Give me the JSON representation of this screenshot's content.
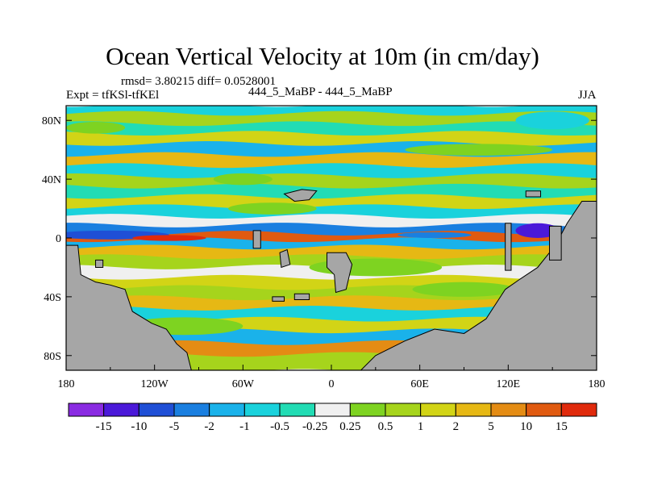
{
  "chart_data": {
    "type": "heatmap",
    "title": "Ocean Vertical Velocity at 10m (in cm/day)",
    "stats_label": "rmsd= 3.80215 diff= 0.0528001",
    "expt_label": "Expt = tfKSl-tfKEl",
    "center_label": "444_5_MaBP - 444_5_MaBP",
    "season_label": "JJA",
    "xlim": [
      -180,
      180
    ],
    "ylim": [
      -90,
      90
    ],
    "x_ticks": [
      {
        "value": -180,
        "label": "180"
      },
      {
        "value": -120,
        "label": "120W"
      },
      {
        "value": -60,
        "label": "60W"
      },
      {
        "value": 0,
        "label": "0"
      },
      {
        "value": 60,
        "label": "60E"
      },
      {
        "value": 120,
        "label": "120E"
      },
      {
        "value": 180,
        "label": "180"
      }
    ],
    "y_ticks": [
      {
        "value": 80,
        "label": "80N"
      },
      {
        "value": 40,
        "label": "40N"
      },
      {
        "value": 0,
        "label": "0"
      },
      {
        "value": -40,
        "label": "40S"
      },
      {
        "value": -80,
        "label": "80S"
      }
    ],
    "colorbar": {
      "labels": [
        "-15",
        "-10",
        "-5",
        "-2",
        "-1",
        "-0.5",
        "-0.25",
        "0.25",
        "0.5",
        "1",
        "2",
        "5",
        "10",
        "15"
      ],
      "colors": [
        "#8a2be2",
        "#4b19d9",
        "#1f4fd6",
        "#1a7fe0",
        "#1ab2ea",
        "#1ad2dc",
        "#22dcb4",
        "#f0f0f0",
        "#7ed321",
        "#a6d41c",
        "#d2d416",
        "#e6b814",
        "#e48c14",
        "#e05a10",
        "#e02a0c"
      ]
    },
    "bands": [
      {
        "lat": 88,
        "value": -1
      },
      {
        "lat": 80,
        "value": 0.5
      },
      {
        "lat": 74,
        "value": -0.5
      },
      {
        "lat": 67,
        "value": 1
      },
      {
        "lat": 60,
        "value": -2
      },
      {
        "lat": 52,
        "value": 2
      },
      {
        "lat": 45,
        "value": -1
      },
      {
        "lat": 38,
        "value": 0.5
      },
      {
        "lat": 31,
        "value": -0.5
      },
      {
        "lat": 24,
        "value": 1
      },
      {
        "lat": 17,
        "value": -1
      },
      {
        "lat": 11,
        "value": 0
      },
      {
        "lat": 5,
        "value": -5
      },
      {
        "lat": 0,
        "value": 10
      },
      {
        "lat": -4,
        "value": -2
      },
      {
        "lat": -10,
        "value": 2
      },
      {
        "lat": -17,
        "value": 0.5
      },
      {
        "lat": -24,
        "value": -0.25
      },
      {
        "lat": -31,
        "value": 1
      },
      {
        "lat": -38,
        "value": 0.5
      },
      {
        "lat": -45,
        "value": 2
      },
      {
        "lat": -52,
        "value": -1
      },
      {
        "lat": -60,
        "value": 1
      },
      {
        "lat": -68,
        "value": -2
      },
      {
        "lat": -76,
        "value": 5
      },
      {
        "lat": -84,
        "value": 0.5
      }
    ]
  }
}
